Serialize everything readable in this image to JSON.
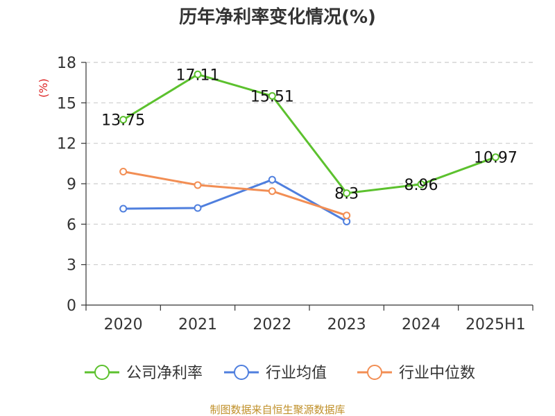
{
  "chart_data": {
    "type": "line",
    "title": "历年净利率变化情况(%)",
    "ylabel": "(%)",
    "xlabel": "",
    "categories": [
      "2020",
      "2021",
      "2022",
      "2023",
      "2024",
      "2025H1"
    ],
    "ylim": [
      0,
      18
    ],
    "yticks": [
      0,
      3,
      6,
      9,
      12,
      15,
      18
    ],
    "grid": true,
    "legend_position": "bottom",
    "series": [
      {
        "name": "公司净利率",
        "color": "#5cc12e",
        "values": [
          13.75,
          17.11,
          15.51,
          8.3,
          8.96,
          10.97
        ],
        "labels": [
          "13.75",
          "17.11",
          "15.51",
          "8.3",
          "8.96",
          "10.97"
        ]
      },
      {
        "name": "行业均值",
        "color": "#4f7fde",
        "values": [
          7.15,
          7.2,
          9.3,
          6.2,
          null,
          null
        ]
      },
      {
        "name": "行业中位数",
        "color": "#f28e54",
        "values": [
          9.9,
          8.9,
          8.45,
          6.65,
          null,
          null
        ]
      }
    ],
    "source": "制图数据来自恒生聚源数据库"
  }
}
